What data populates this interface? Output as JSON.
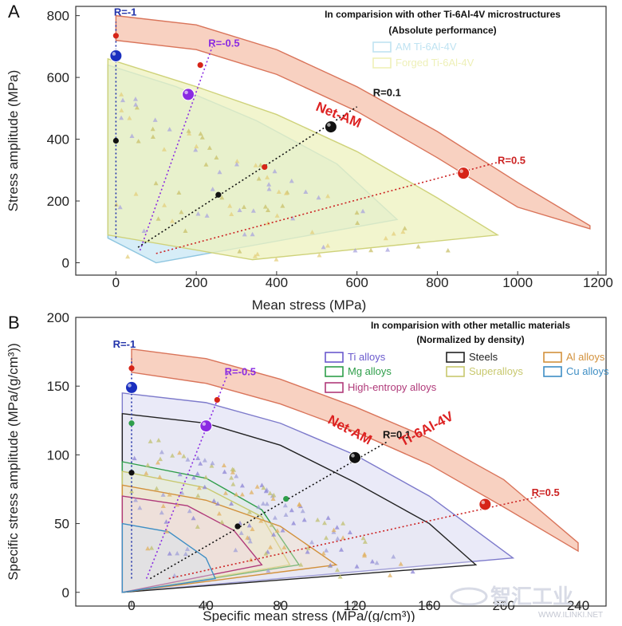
{
  "chart_data": [
    {
      "panel": "A",
      "type": "scatter",
      "xlabel": "Mean stress (MPa)",
      "ylabel": "Stress amplitude (MPa)",
      "xlim": [
        -100,
        1220
      ],
      "ylim": [
        -40,
        830
      ],
      "x_ticks": [
        0,
        200,
        400,
        600,
        800,
        1000,
        1200
      ],
      "y_ticks": [
        0,
        200,
        400,
        600,
        800
      ],
      "legend": {
        "title": [
          "In comparision with other Ti-6Al-4V microstructures",
          "(Absolute performance)"
        ],
        "entries": [
          {
            "label": "AM Ti-6Al-4V",
            "color": "#bfe3f2"
          },
          {
            "label": "Forged Ti-6Al-4V",
            "color": "#eef0b8"
          }
        ]
      },
      "band_label": "Net-AM",
      "band": {
        "lower": [
          [
            0,
            720
          ],
          [
            200,
            690
          ],
          [
            400,
            610
          ],
          [
            600,
            490
          ],
          [
            800,
            340
          ],
          [
            1000,
            180
          ],
          [
            1180,
            110
          ]
        ],
        "upper": [
          [
            0,
            800
          ],
          [
            200,
            770
          ],
          [
            400,
            690
          ],
          [
            600,
            570
          ],
          [
            800,
            425
          ],
          [
            1000,
            260
          ],
          [
            1180,
            120
          ]
        ]
      },
      "regions": [
        {
          "name": "AM Ti-6Al-4V",
          "polygon": [
            [
              -20,
              640
            ],
            [
              150,
              570
            ],
            [
              350,
              460
            ],
            [
              550,
              320
            ],
            [
              700,
              140
            ],
            [
              100,
              0
            ],
            [
              -20,
              80
            ]
          ]
        },
        {
          "name": "Forged Ti-6Al-4V",
          "polygon": [
            [
              -20,
              660
            ],
            [
              200,
              570
            ],
            [
              400,
              480
            ],
            [
              600,
              360
            ],
            [
              800,
              210
            ],
            [
              950,
              90
            ],
            [
              340,
              10
            ],
            [
              -20,
              90
            ]
          ]
        }
      ],
      "r_lines": [
        {
          "label": "R=-1",
          "color": "#2233aa",
          "points": [
            [
              0,
              80
            ],
            [
              0,
              780
            ]
          ],
          "highlight": [
            0,
            670
          ],
          "label_at": [
            -5,
            800
          ]
        },
        {
          "label": "R=-0.5",
          "color": "#8a2be2",
          "points": [
            [
              60,
              40
            ],
            [
              240,
              700
            ]
          ],
          "highlight": [
            180,
            545
          ],
          "label_at": [
            230,
            700
          ]
        },
        {
          "label": "R=0.1",
          "color": "#111111",
          "points": [
            [
              55,
              50
            ],
            [
              600,
              505
            ]
          ],
          "highlight": [
            535,
            440
          ],
          "label_at": [
            640,
            540
          ]
        },
        {
          "label": "R=0.5",
          "color": "#cc2222",
          "points": [
            [
              100,
              30
            ],
            [
              950,
              325
            ]
          ],
          "highlight": [
            865,
            290
          ],
          "label_at": [
            950,
            320
          ]
        }
      ],
      "highlight_colors": [
        "#1a2fbf",
        "#8a2be2",
        "#111111",
        "#d62418"
      ],
      "net_am_points": [
        {
          "x": 0,
          "y": 670
        },
        {
          "x": 180,
          "y": 545
        },
        {
          "x": 535,
          "y": 440
        },
        {
          "x": 865,
          "y": 290
        }
      ],
      "extra_points": [
        {
          "x": 0,
          "y": 735,
          "color": "#d62418"
        },
        {
          "x": 210,
          "y": 640,
          "color": "#d62418"
        },
        {
          "x": 370,
          "y": 310,
          "color": "#d62418"
        },
        {
          "x": 0,
          "y": 395,
          "color": "#111111"
        },
        {
          "x": 255,
          "y": 220,
          "color": "#111111"
        }
      ]
    },
    {
      "panel": "B",
      "type": "scatter",
      "xlabel": "Specific mean stress (MPa/(g/cm³))",
      "ylabel": "Specific stress amplitude (MPa/(g/cm³))",
      "xlim": [
        -30,
        255
      ],
      "ylim": [
        -10,
        200
      ],
      "x_ticks": [
        0,
        40,
        80,
        120,
        160,
        200,
        240
      ],
      "y_ticks": [
        0,
        50,
        100,
        150,
        200
      ],
      "legend": {
        "title": [
          "In comparision with other metallic materials",
          "(Normalized by density)"
        ],
        "entries": [
          {
            "label": "Ti alloys",
            "color": "#6a5acd"
          },
          {
            "label": "Steels",
            "color": "#222222"
          },
          {
            "label": "Al alloys",
            "color": "#d2913c"
          },
          {
            "label": "Mg alloys",
            "color": "#2e9e4a"
          },
          {
            "label": "Superalloys",
            "color": "#c8c86e"
          },
          {
            "label": "Cu alloys",
            "color": "#3e8ec4"
          },
          {
            "label": "High-entropy alloys",
            "color": "#b03a7a"
          }
        ]
      },
      "band_label": [
        "Net-AM",
        "Ti-6Al-4V"
      ],
      "band": {
        "lower": [
          [
            0,
            160
          ],
          [
            40,
            152
          ],
          [
            80,
            137
          ],
          [
            120,
            117
          ],
          [
            160,
            93
          ],
          [
            200,
            62
          ],
          [
            240,
            30
          ]
        ],
        "upper": [
          [
            0,
            177
          ],
          [
            40,
            170
          ],
          [
            80,
            155
          ],
          [
            120,
            135
          ],
          [
            160,
            112
          ],
          [
            200,
            82
          ],
          [
            240,
            36
          ]
        ]
      },
      "regions": [
        {
          "name": "Ti alloys",
          "polygon": [
            [
              -5,
              145
            ],
            [
              40,
              138
            ],
            [
              80,
              123
            ],
            [
              120,
              100
            ],
            [
              160,
              70
            ],
            [
              205,
              25
            ],
            [
              -5,
              0
            ]
          ]
        },
        {
          "name": "Steels",
          "polygon": [
            [
              -5,
              130
            ],
            [
              40,
              123
            ],
            [
              80,
              107
            ],
            [
              120,
              80
            ],
            [
              160,
              50
            ],
            [
              185,
              20
            ],
            [
              -5,
              0
            ]
          ]
        },
        {
          "name": "Mg alloys",
          "polygon": [
            [
              -5,
              95
            ],
            [
              40,
              83
            ],
            [
              70,
              60
            ],
            [
              90,
              20
            ],
            [
              -5,
              0
            ]
          ]
        },
        {
          "name": "Superalloys",
          "polygon": [
            [
              -5,
              88
            ],
            [
              40,
              76
            ],
            [
              70,
              55
            ],
            [
              85,
              20
            ],
            [
              -5,
              0
            ]
          ]
        },
        {
          "name": "Al alloys",
          "polygon": [
            [
              -5,
              78
            ],
            [
              40,
              67
            ],
            [
              80,
              48
            ],
            [
              110,
              20
            ],
            [
              -5,
              0
            ]
          ]
        },
        {
          "name": "High-entropy alloys",
          "polygon": [
            [
              -5,
              70
            ],
            [
              30,
              63
            ],
            [
              55,
              45
            ],
            [
              70,
              20
            ],
            [
              -5,
              0
            ]
          ]
        },
        {
          "name": "Cu alloys",
          "polygon": [
            [
              -5,
              50
            ],
            [
              20,
              44
            ],
            [
              40,
              25
            ],
            [
              45,
              10
            ],
            [
              -5,
              0
            ]
          ]
        }
      ],
      "r_lines": [
        {
          "label": "R=-1",
          "color": "#2233aa",
          "points": [
            [
              0,
              10
            ],
            [
              0,
              170
            ]
          ],
          "highlight": [
            0,
            149
          ],
          "label_at": [
            -10,
            178
          ]
        },
        {
          "label": "R=-0.5",
          "color": "#8a2be2",
          "points": [
            [
              8,
              10
            ],
            [
              52,
              160
            ]
          ],
          "highlight": [
            40,
            121
          ],
          "label_at": [
            50,
            158
          ]
        },
        {
          "label": "R=0.1",
          "color": "#111111",
          "points": [
            [
              10,
              10
            ],
            [
              138,
              110
            ]
          ],
          "highlight": [
            120,
            98
          ],
          "label_at": [
            135,
            112
          ]
        },
        {
          "label": "R=0.5",
          "color": "#cc2222",
          "points": [
            [
              20,
              10
            ],
            [
              220,
              70
            ]
          ],
          "highlight": [
            190,
            64
          ],
          "label_at": [
            215,
            70
          ]
        }
      ],
      "highlight_colors": [
        "#1a2fbf",
        "#8a2be2",
        "#111111",
        "#d62418"
      ],
      "net_am_points": [
        {
          "x": 0,
          "y": 149
        },
        {
          "x": 40,
          "y": 121
        },
        {
          "x": 120,
          "y": 98
        },
        {
          "x": 190,
          "y": 64
        }
      ],
      "extra_points": [
        {
          "x": 0,
          "y": 163,
          "color": "#d62418"
        },
        {
          "x": 46,
          "y": 140,
          "color": "#d62418"
        },
        {
          "x": 0,
          "y": 123,
          "color": "#2e9e4a"
        },
        {
          "x": 0,
          "y": 87,
          "color": "#111111"
        },
        {
          "x": 83,
          "y": 68,
          "color": "#2e9e4a"
        },
        {
          "x": 57,
          "y": 48,
          "color": "#111111"
        }
      ]
    }
  ],
  "watermark": {
    "text": "智汇工业",
    "sub": "WWW.ILINKI.NET"
  }
}
